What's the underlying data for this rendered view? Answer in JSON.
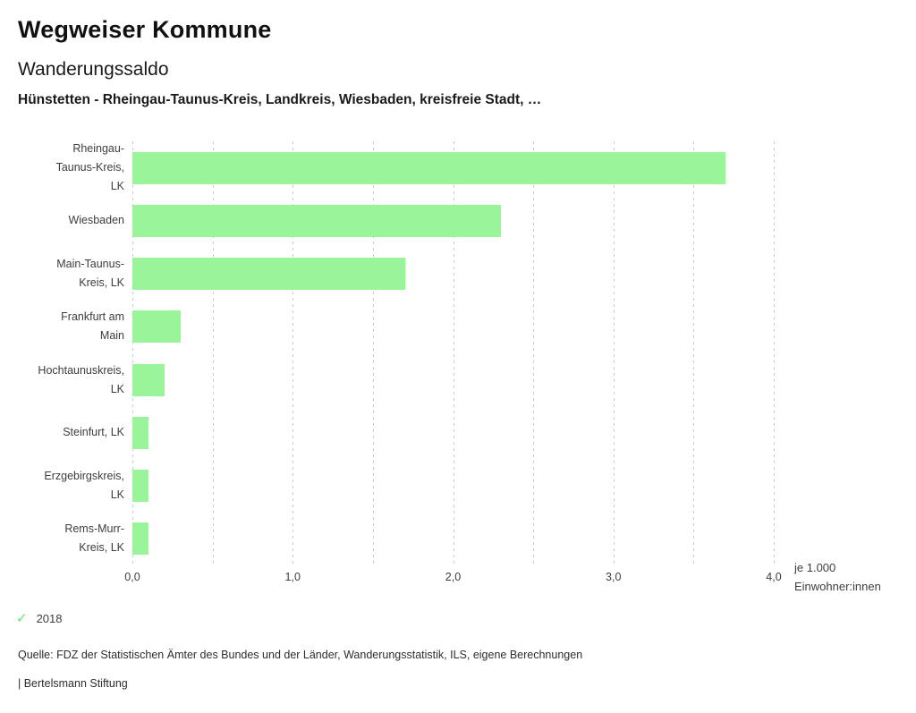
{
  "header": {
    "title": "Wegweiser Kommune",
    "subtitle": "Wanderungssaldo",
    "description": "Hünstetten - Rheingau-Taunus-Kreis, Landkreis, Wiesbaden, kreisfreie Stadt, …"
  },
  "chart_data": {
    "type": "bar",
    "orientation": "horizontal",
    "title": "Wanderungssaldo",
    "categories": [
      "Rheingau-Taunus-Kreis, LK",
      "Wiesbaden",
      "Main-Taunus-Kreis, LK",
      "Frankfurt am Main",
      "Hochtaunuskreis, LK",
      "Steinfurt, LK",
      "Erzgebirgskreis, LK",
      "Rems-Murr-Kreis, LK"
    ],
    "category_label_lines": [
      [
        "Rheingau-",
        "Taunus-Kreis,",
        "LK"
      ],
      [
        "Wiesbaden"
      ],
      [
        "Main-Taunus-",
        "Kreis, LK"
      ],
      [
        "Frankfurt am",
        "Main"
      ],
      [
        "Hochtaunuskreis,",
        "LK"
      ],
      [
        "Steinfurt, LK"
      ],
      [
        "Erzgebirgskreis,",
        "LK"
      ],
      [
        "Rems-Murr-",
        "Kreis, LK"
      ]
    ],
    "values": [
      3.7,
      2.3,
      1.7,
      0.3,
      0.2,
      0.1,
      0.1,
      0.1
    ],
    "xlim": [
      0,
      4
    ],
    "gridlines": [
      0,
      0.5,
      1,
      1.5,
      2,
      2.5,
      3,
      3.5,
      4
    ],
    "x_ticks": [
      {
        "value": 0,
        "label": "0,0"
      },
      {
        "value": 1,
        "label": "1,0"
      },
      {
        "value": 2,
        "label": "2,0"
      },
      {
        "value": 3,
        "label": "3,0"
      },
      {
        "value": 4,
        "label": "4,0"
      }
    ],
    "unit_lines": [
      "je 1.000",
      "Einwohner:innen"
    ],
    "bar_color": "#9af49a",
    "grid_color": "#c9c9c9",
    "legend_position": "bottom-left",
    "grid": true
  },
  "legend": {
    "check_icon": "✓",
    "year": "2018",
    "check_color": "#8ce98c"
  },
  "footer": {
    "source": "Quelle: FDZ der Statistischen Ämter des Bundes und der Länder, Wanderungsstatistik, ILS, eigene Berechnungen",
    "brand": "| Bertelsmann Stiftung"
  }
}
